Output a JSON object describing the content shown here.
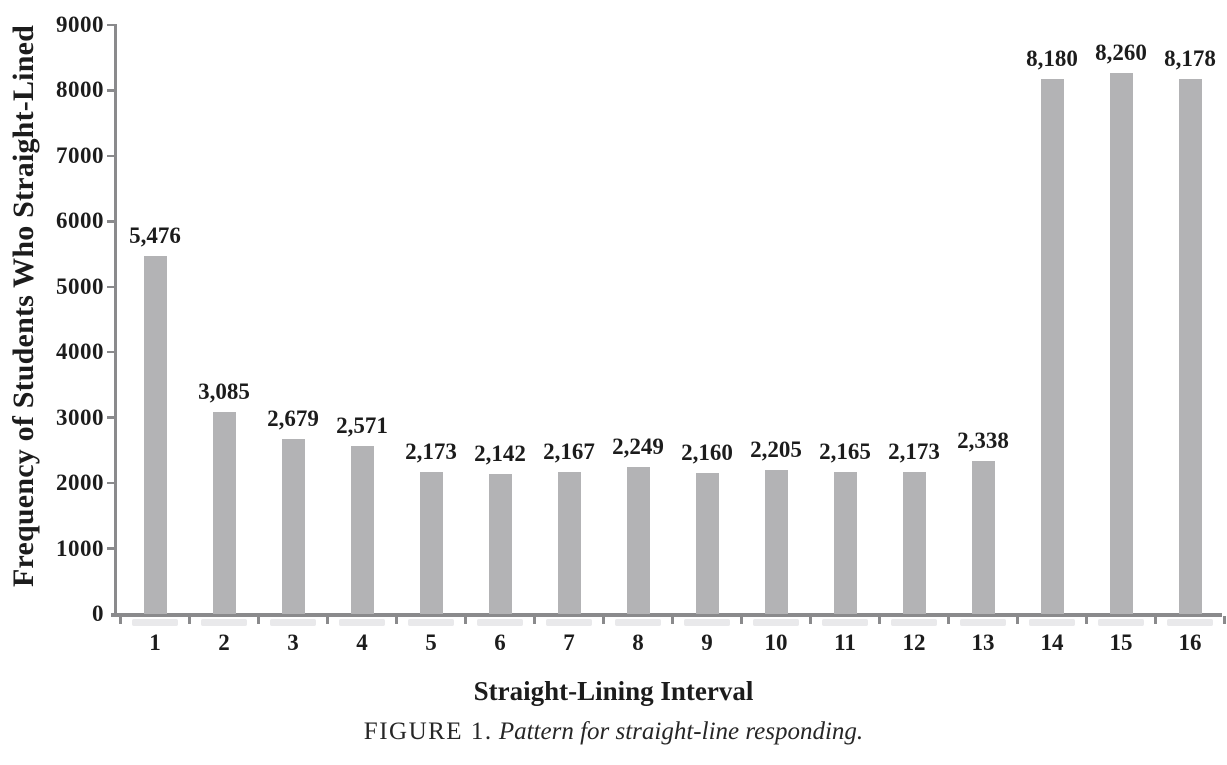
{
  "chart_data": {
    "type": "bar",
    "title": "",
    "xlabel": "Straight-Lining Interval",
    "ylabel": "Frequency of Students Who Straight-Lined",
    "categories": [
      "1",
      "2",
      "3",
      "4",
      "5",
      "6",
      "7",
      "8",
      "9",
      "10",
      "11",
      "12",
      "13",
      "14",
      "15",
      "16"
    ],
    "values": [
      5476,
      3085,
      2679,
      2571,
      2173,
      2142,
      2167,
      2249,
      2160,
      2205,
      2165,
      2173,
      2338,
      8180,
      8260,
      8178
    ],
    "value_labels": [
      "5,476",
      "3,085",
      "2,679",
      "2,571",
      "2,173",
      "2,142",
      "2,167",
      "2,249",
      "2,160",
      "2,205",
      "2,165",
      "2,173",
      "2,338",
      "8,180",
      "8,260",
      "8,178"
    ],
    "ylim": [
      0,
      9000
    ],
    "y_ticks": [
      0,
      1000,
      2000,
      3000,
      4000,
      5000,
      6000,
      7000,
      8000,
      9000
    ],
    "y_tick_labels": [
      "0",
      "1000",
      "2000",
      "3000",
      "4000",
      "5000",
      "6000",
      "7000",
      "8000",
      "9000"
    ],
    "grid": false,
    "legend": null,
    "bar_color": "#b3b3b5",
    "axis_color": "#8a8a8c",
    "text_color": "#1c1c1c"
  },
  "caption": {
    "prefix": "FIGURE 1.",
    "text": "Pattern for straight-line responding."
  }
}
